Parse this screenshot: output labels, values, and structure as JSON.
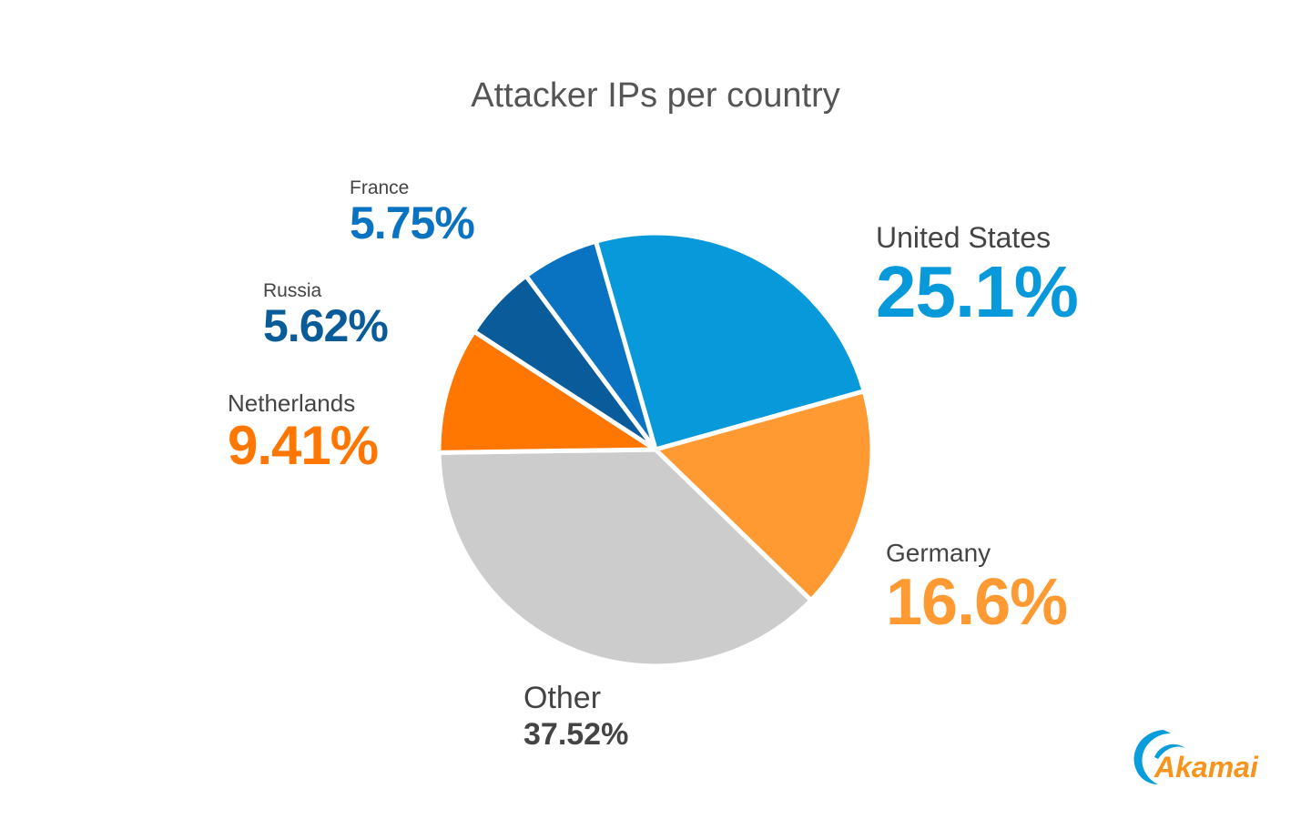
{
  "chart_data": {
    "type": "pie",
    "title": "Attacker IPs per country",
    "slices": [
      {
        "label": "United States",
        "value": 25.1,
        "display": "25.1%",
        "color": "#0899db"
      },
      {
        "label": "Germany",
        "value": 16.6,
        "display": "16.6%",
        "color": "#ff9a33"
      },
      {
        "label": "Other",
        "value": 37.52,
        "display": "37.52%",
        "color": "#cccccc"
      },
      {
        "label": "Netherlands",
        "value": 9.41,
        "display": "9.41%",
        "color": "#ff7700"
      },
      {
        "label": "Russia",
        "value": 5.62,
        "display": "5.62%",
        "color": "#095c99"
      },
      {
        "label": "France",
        "value": 5.75,
        "display": "5.75%",
        "color": "#0a73c1"
      }
    ],
    "label_colors": {
      "Other": "#444444"
    }
  },
  "logo": {
    "text": "Akamai",
    "color": "#f7941d",
    "swoosh_color": "#0a9ddb"
  }
}
